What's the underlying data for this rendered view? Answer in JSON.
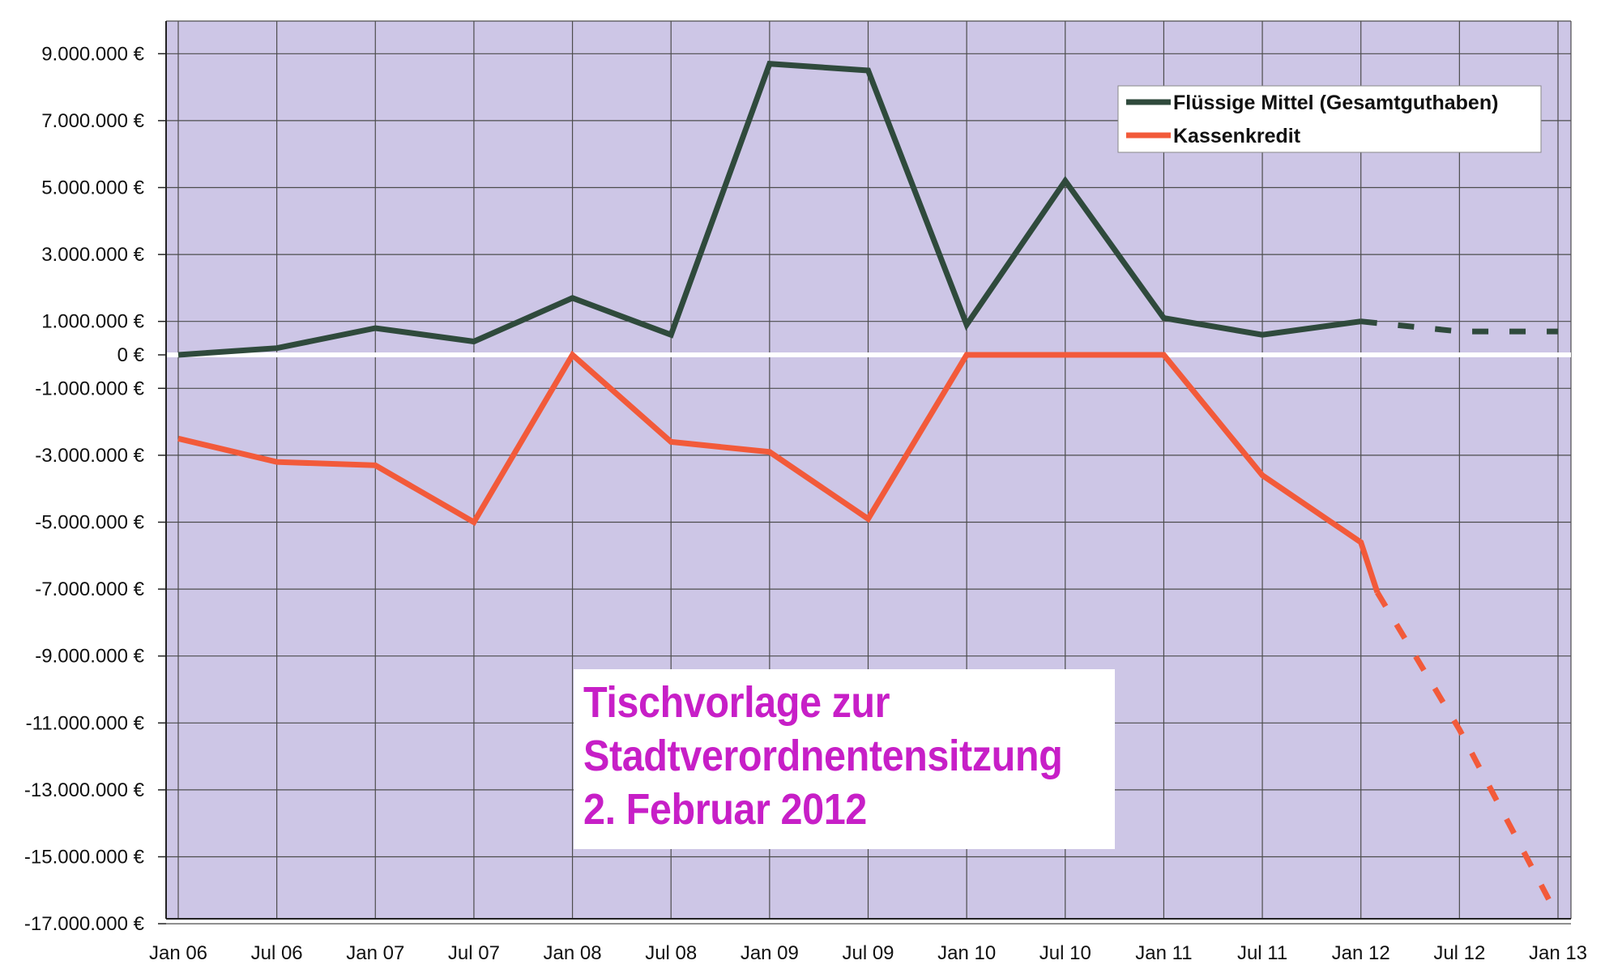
{
  "chart_data": {
    "type": "line",
    "title": "",
    "xlabel": "",
    "ylabel": "",
    "x_ticks": [
      "Jan 06",
      "Jul 06",
      "Jan 07",
      "Jul 07",
      "Jan 08",
      "Jul 08",
      "Jan 09",
      "Jul 09",
      "Jan 10",
      "Jul 10",
      "Jan 11",
      "Jul 11",
      "Jan 12",
      "Jul 12",
      "Jan 13"
    ],
    "y_ticks": [
      9000000,
      7000000,
      5000000,
      3000000,
      1000000,
      0,
      -1000000,
      -3000000,
      -5000000,
      -7000000,
      -9000000,
      -11000000,
      -13000000,
      -15000000,
      -17000000
    ],
    "y_tick_labels": [
      "9.000.000 €",
      "7.000.000 €",
      "5.000.000 €",
      "3.000.000 €",
      "1.000.000 €",
      "0 €",
      "-1.000.000 €",
      "-3.000.000 €",
      "-5.000.000 €",
      "-7.000.000 €",
      "-9.000.000 €",
      "-11.000.000 €",
      "-13.000.000 €",
      "-15.000.000 €",
      "-17.000.000 €"
    ],
    "ylim": [
      -17000000,
      10000000
    ],
    "grid": true,
    "legend_position": "top-right",
    "series": [
      {
        "name": "Flüssige Mittel (Gesamtguthaben)",
        "color": "#2f4a3c",
        "points": [
          {
            "x": "Jan 06",
            "y": 0
          },
          {
            "x": "Jul 06",
            "y": 200000
          },
          {
            "x": "Jan 07",
            "y": 800000
          },
          {
            "x": "Jul 07",
            "y": 400000
          },
          {
            "x": "Jan 08",
            "y": 1700000
          },
          {
            "x": "Jul 08",
            "y": 600000
          },
          {
            "x": "Jan 09",
            "y": 8700000
          },
          {
            "x": "Jul 09",
            "y": 8500000
          },
          {
            "x": "Jan 10",
            "y": 900000
          },
          {
            "x": "Jul 10",
            "y": 5200000
          },
          {
            "x": "Jan 11",
            "y": 1100000
          },
          {
            "x": "Jul 11",
            "y": 600000
          },
          {
            "x": "Jan 12",
            "y": 1000000
          }
        ],
        "projection": [
          {
            "x": "Jan 12",
            "y": 1000000
          },
          {
            "x": "Jul 12",
            "y": 700000
          },
          {
            "x": "Jan 13",
            "y": 700000
          }
        ]
      },
      {
        "name": "Kassenkredit",
        "color": "#f25a3a",
        "points": [
          {
            "x": "Jan 06",
            "y": -2500000
          },
          {
            "x": "Jul 06",
            "y": -3200000
          },
          {
            "x": "Jan 07",
            "y": -3300000
          },
          {
            "x": "Jul 07",
            "y": -5000000
          },
          {
            "x": "Jan 08",
            "y": 0
          },
          {
            "x": "Jul 08",
            "y": -2600000
          },
          {
            "x": "Jan 09",
            "y": -2900000
          },
          {
            "x": "Jul 09",
            "y": -4900000
          },
          {
            "x": "Jan 10",
            "y": 0
          },
          {
            "x": "Jul 10",
            "y": 0
          },
          {
            "x": "Jan 11",
            "y": 0
          },
          {
            "x": "Jul 11",
            "y": -3600000
          },
          {
            "x": "Jan 12",
            "y": -5600000
          },
          {
            "x": "Feb 12",
            "y": -7100000
          }
        ],
        "projection": [
          {
            "x": "Feb 12",
            "y": -7100000
          },
          {
            "x": "Jul 12",
            "y": -11200000
          },
          {
            "x": "Jan 13",
            "y": -16800000
          }
        ]
      }
    ]
  },
  "annotation": {
    "lines": [
      "Tischvorlage zur",
      "Stadtverordnentensitzung",
      "2. Februar 2012"
    ]
  },
  "colors": {
    "plot_background": "#cdc6e6",
    "grid": "#4d4d4d",
    "zero_line": "#ffffff",
    "annotation_text": "#c71fc7"
  }
}
